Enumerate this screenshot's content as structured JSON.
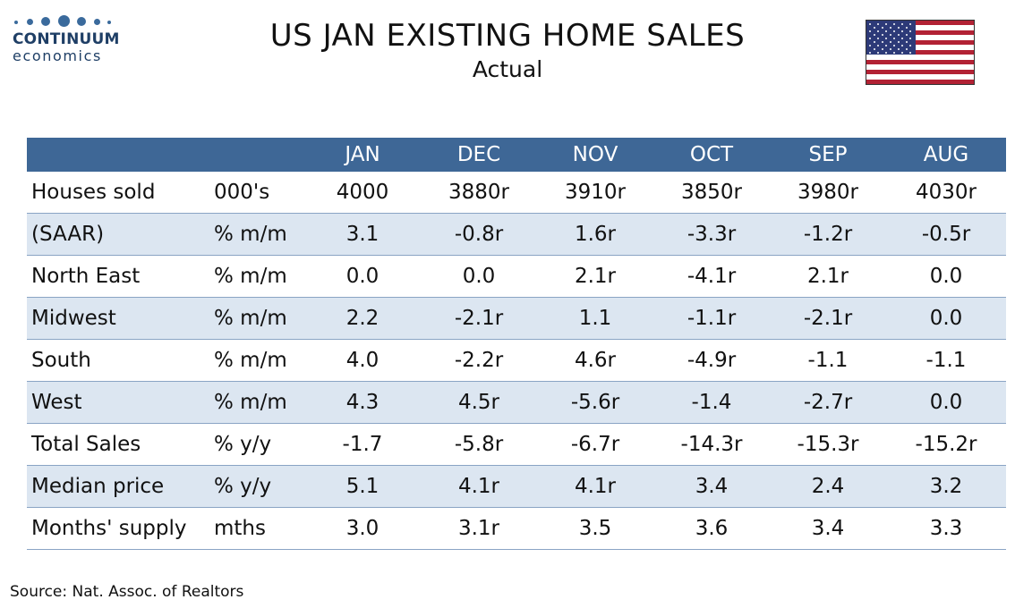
{
  "logo": {
    "brand": "CONTINUUM",
    "sub": "economics"
  },
  "header": {
    "title": "US JAN EXISTING HOME SALES",
    "subtitle": "Actual"
  },
  "flag": {
    "icon": "us-flag-icon",
    "colors": {
      "red": "#b22234",
      "white": "#ffffff",
      "blue": "#2d3a78"
    }
  },
  "table": {
    "columns": [
      "JAN",
      "DEC",
      "NOV",
      "OCT",
      "SEP",
      "AUG"
    ],
    "rows": [
      {
        "label": "Houses sold",
        "unit": "000's",
        "values": [
          "4000",
          "3880r",
          "3910r",
          "3850r",
          "3980r",
          "4030r"
        ]
      },
      {
        "label": "(SAAR)",
        "unit": "% m/m",
        "values": [
          "3.1",
          "-0.8r",
          "1.6r",
          "-3.3r",
          "-1.2r",
          "-0.5r"
        ]
      },
      {
        "label": "North East",
        "unit": "% m/m",
        "values": [
          "0.0",
          "0.0",
          "2.1r",
          "-4.1r",
          "2.1r",
          "0.0"
        ]
      },
      {
        "label": "Midwest",
        "unit": "% m/m",
        "values": [
          "2.2",
          "-2.1r",
          "1.1",
          "-1.1r",
          "-2.1r",
          "0.0"
        ]
      },
      {
        "label": "South",
        "unit": "% m/m",
        "values": [
          "4.0",
          "-2.2r",
          "4.6r",
          "-4.9r",
          "-1.1",
          "-1.1"
        ]
      },
      {
        "label": "West",
        "unit": "% m/m",
        "values": [
          "4.3",
          "4.5r",
          "-5.6r",
          "-1.4",
          "-2.7r",
          "0.0"
        ]
      },
      {
        "label": "Total Sales",
        "unit": "% y/y",
        "values": [
          "-1.7",
          "-5.8r",
          "-6.7r",
          "-14.3r",
          "-15.3r",
          "-15.2r"
        ]
      },
      {
        "label": "Median price",
        "unit": "% y/y",
        "values": [
          "5.1",
          "4.1r",
          "4.1r",
          "3.4",
          "2.4",
          "3.2"
        ]
      },
      {
        "label": "Months' supply",
        "unit": "mths",
        "values": [
          "3.0",
          "3.1r",
          "3.5",
          "3.6",
          "3.4",
          "3.3"
        ]
      }
    ]
  },
  "footer": {
    "source": "Source: Nat. Assoc. of Realtors"
  },
  "colors": {
    "header_bg": "#3e6796",
    "band_bg": "#dce6f1",
    "rule": "#8aa4c4"
  }
}
